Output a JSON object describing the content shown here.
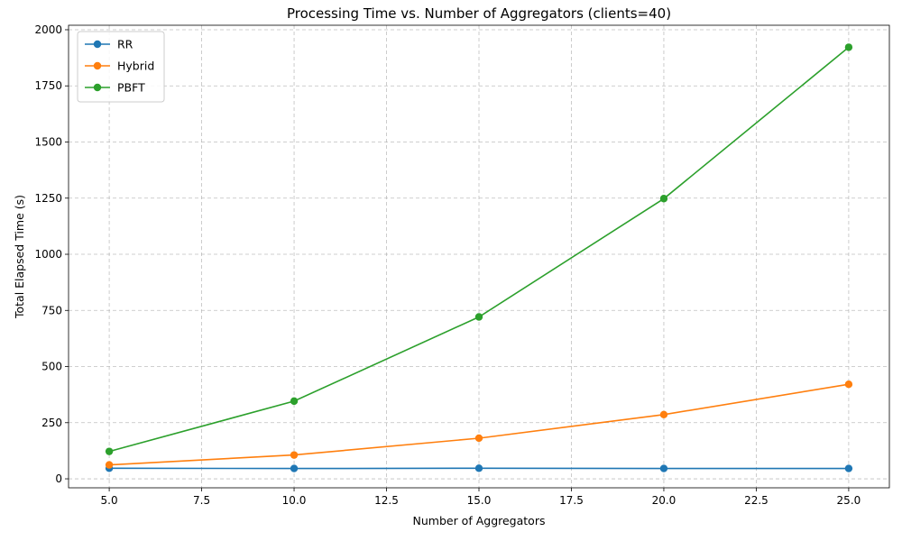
{
  "chart_data": {
    "type": "line",
    "title": "Processing Time vs. Number of Aggregators (clients=40)",
    "xlabel": "Number of Aggregators",
    "ylabel": "Total Elapsed Time (s)",
    "x": [
      5,
      10,
      15,
      20,
      25
    ],
    "xlim": [
      3.9,
      26.1
    ],
    "ylim": [
      -40,
      2020
    ],
    "xticks": [
      5,
      7.5,
      10,
      12.5,
      15,
      17.5,
      20,
      22.5,
      25
    ],
    "xtick_labels": [
      "5.0",
      "7.5",
      "10.0",
      "12.5",
      "15.0",
      "17.5",
      "20.0",
      "22.5",
      "25.0"
    ],
    "yticks": [
      0,
      250,
      500,
      750,
      1000,
      1250,
      1500,
      1750,
      2000
    ],
    "ytick_labels": [
      "0",
      "250",
      "500",
      "750",
      "1000",
      "1250",
      "1500",
      "1750",
      "2000"
    ],
    "grid": true,
    "legend_position": "top-left",
    "series": [
      {
        "name": "RR",
        "color": "#1f77b4",
        "values": [
          47,
          46,
          47,
          46,
          46
        ]
      },
      {
        "name": "Hybrid",
        "color": "#ff7f0e",
        "values": [
          62,
          106,
          181,
          286,
          421
        ]
      },
      {
        "name": "PBFT",
        "color": "#2ca02c",
        "values": [
          122,
          346,
          721,
          1248,
          1922
        ]
      }
    ]
  }
}
